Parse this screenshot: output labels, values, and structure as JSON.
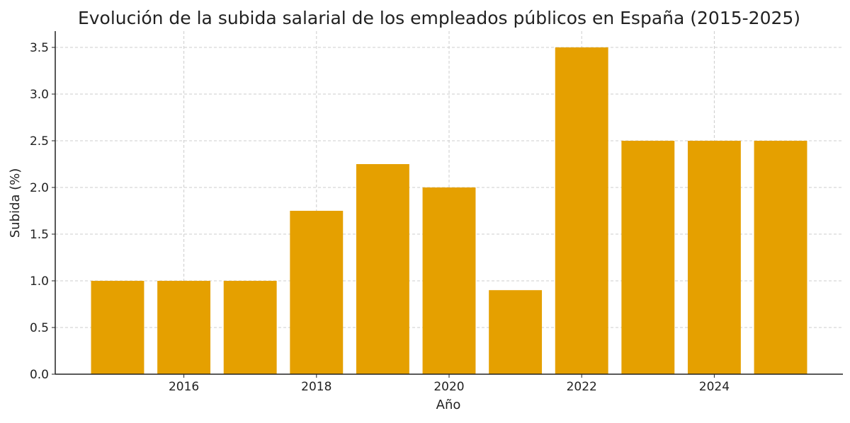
{
  "chart_data": {
    "type": "bar",
    "title": "Evolución de la subida salarial de los empleados públicos en España (2015-2025)",
    "xlabel": "Año",
    "ylabel": "Subida (%)",
    "categories": [
      2015,
      2016,
      2017,
      2018,
      2019,
      2020,
      2021,
      2022,
      2023,
      2024,
      2025
    ],
    "values": [
      1.0,
      1.0,
      1.0,
      1.75,
      2.25,
      2.0,
      0.9,
      3.5,
      2.5,
      2.5,
      2.5
    ],
    "xticks": [
      "2016",
      "2018",
      "2020",
      "2022",
      "2024"
    ],
    "yticks": [
      "0.0",
      "0.5",
      "1.0",
      "1.5",
      "2.0",
      "2.5",
      "3.0",
      "3.5"
    ],
    "xlim": [
      2014.06,
      2025.94
    ],
    "ylim": [
      0,
      3.67
    ],
    "grid": true,
    "bar_color": "#E5A000"
  }
}
